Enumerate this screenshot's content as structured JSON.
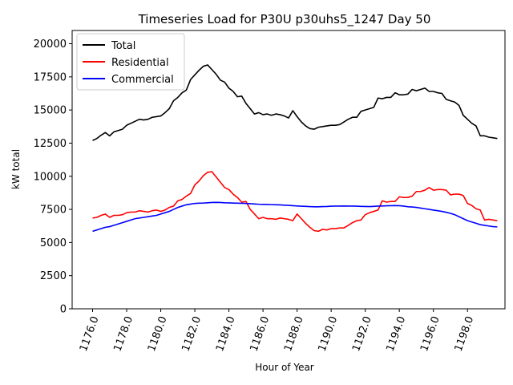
{
  "chart_data": {
    "type": "line",
    "title": "Timeseries Load for P30U p30uhs5_1247  Day 50",
    "xlabel": "Hour of Year",
    "ylabel": "kW total",
    "xlim": [
      1174.8,
      1200.2
    ],
    "ylim": [
      0,
      21000
    ],
    "xticks": [
      1176,
      1178,
      1180,
      1182,
      1184,
      1186,
      1188,
      1190,
      1192,
      1194,
      1196,
      1198
    ],
    "xtick_labels": [
      "1176.0",
      "1178.0",
      "1180.0",
      "1182.0",
      "1184.0",
      "1186.0",
      "1188.0",
      "1190.0",
      "1192.0",
      "1194.0",
      "1196.0",
      "1198.0"
    ],
    "yticks": [
      0,
      2500,
      5000,
      7500,
      10000,
      12500,
      15000,
      17500,
      20000
    ],
    "ytick_labels": [
      "0",
      "2500",
      "5000",
      "7500",
      "10000",
      "12500",
      "15000",
      "17500",
      "20000"
    ],
    "legend_position": "top-left",
    "x": [
      1176.0,
      1176.25,
      1176.5,
      1176.75,
      1177.0,
      1177.25,
      1177.5,
      1177.75,
      1178.0,
      1178.25,
      1178.5,
      1178.75,
      1179.0,
      1179.25,
      1179.5,
      1179.75,
      1180.0,
      1180.25,
      1180.5,
      1180.75,
      1181.0,
      1181.25,
      1181.5,
      1181.75,
      1182.0,
      1182.25,
      1182.5,
      1182.75,
      1183.0,
      1183.25,
      1183.5,
      1183.75,
      1184.0,
      1184.25,
      1184.5,
      1184.75,
      1185.0,
      1185.25,
      1185.5,
      1185.75,
      1186.0,
      1186.25,
      1186.5,
      1186.75,
      1187.0,
      1187.25,
      1187.5,
      1187.75,
      1188.0,
      1188.25,
      1188.5,
      1188.75,
      1189.0,
      1189.25,
      1189.5,
      1189.75,
      1190.0,
      1190.25,
      1190.5,
      1190.75,
      1191.0,
      1191.25,
      1191.5,
      1191.75,
      1192.0,
      1192.25,
      1192.5,
      1192.75,
      1193.0,
      1193.25,
      1193.5,
      1193.75,
      1194.0,
      1194.25,
      1194.5,
      1194.75,
      1195.0,
      1195.25,
      1195.5,
      1195.75,
      1196.0,
      1196.25,
      1196.5,
      1196.75,
      1197.0,
      1197.25,
      1197.5,
      1197.75,
      1198.0,
      1198.25,
      1198.5,
      1198.75,
      1199.0,
      1199.25,
      1199.5,
      1199.75
    ],
    "series": [
      {
        "name": "Total",
        "color": "#000000",
        "values": [
          12700,
          12850,
          13100,
          13300,
          13050,
          13350,
          13450,
          13550,
          13850,
          14000,
          14150,
          14300,
          14250,
          14300,
          14450,
          14500,
          14550,
          14800,
          15100,
          15700,
          15950,
          16300,
          16500,
          17300,
          17650,
          18000,
          18300,
          18400,
          18050,
          17700,
          17250,
          17100,
          16650,
          16400,
          16000,
          16050,
          15500,
          15100,
          14700,
          14800,
          14650,
          14700,
          14600,
          14700,
          14650,
          14550,
          14400,
          14950,
          14500,
          14100,
          13800,
          13600,
          13550,
          13700,
          13750,
          13800,
          13850,
          13850,
          13900,
          14100,
          14300,
          14450,
          14450,
          14900,
          15000,
          15100,
          15200,
          15900,
          15850,
          15950,
          15950,
          16300,
          16150,
          16150,
          16200,
          16550,
          16450,
          16550,
          16650,
          16400,
          16400,
          16300,
          16250,
          15800,
          15700,
          15600,
          15350,
          14600,
          14300,
          14000,
          13800,
          13050,
          13050,
          12950,
          12900,
          12850
        ]
      },
      {
        "name": "Residential",
        "color": "#ff0000",
        "values": [
          6850,
          6900,
          7050,
          7150,
          6900,
          7050,
          7050,
          7100,
          7250,
          7300,
          7300,
          7400,
          7350,
          7300,
          7400,
          7450,
          7350,
          7450,
          7650,
          7750,
          8150,
          8250,
          8500,
          8700,
          9350,
          9650,
          10050,
          10300,
          10350,
          9950,
          9550,
          9150,
          9000,
          8650,
          8400,
          8050,
          8100,
          7500,
          7150,
          6800,
          6900,
          6800,
          6800,
          6750,
          6850,
          6800,
          6750,
          6650,
          7150,
          6800,
          6450,
          6150,
          5900,
          5850,
          6000,
          5950,
          6050,
          6050,
          6100,
          6100,
          6300,
          6500,
          6650,
          6700,
          7100,
          7250,
          7350,
          7450,
          8150,
          8050,
          8100,
          8100,
          8450,
          8400,
          8400,
          8500,
          8850,
          8850,
          8950,
          9150,
          8950,
          9000,
          9000,
          8950,
          8600,
          8650,
          8650,
          8550,
          7950,
          7800,
          7550,
          7450,
          6700,
          6750,
          6700,
          6650
        ]
      },
      {
        "name": "Commercial",
        "color": "#0000ff",
        "values": [
          5850,
          5950,
          6050,
          6150,
          6200,
          6300,
          6400,
          6500,
          6600,
          6700,
          6800,
          6850,
          6900,
          6950,
          7000,
          7050,
          7150,
          7250,
          7350,
          7500,
          7650,
          7750,
          7850,
          7900,
          7950,
          7970,
          7980,
          8000,
          8020,
          8030,
          8020,
          8000,
          7990,
          7980,
          7970,
          7960,
          7950,
          7930,
          7910,
          7890,
          7880,
          7870,
          7860,
          7850,
          7840,
          7820,
          7800,
          7780,
          7760,
          7740,
          7730,
          7710,
          7700,
          7700,
          7710,
          7720,
          7740,
          7750,
          7750,
          7760,
          7750,
          7750,
          7740,
          7730,
          7720,
          7710,
          7730,
          7750,
          7760,
          7770,
          7780,
          7790,
          7780,
          7750,
          7700,
          7680,
          7650,
          7600,
          7550,
          7500,
          7450,
          7400,
          7350,
          7280,
          7200,
          7100,
          6950,
          6800,
          6650,
          6550,
          6450,
          6350,
          6300,
          6250,
          6200,
          6180
        ]
      }
    ]
  }
}
